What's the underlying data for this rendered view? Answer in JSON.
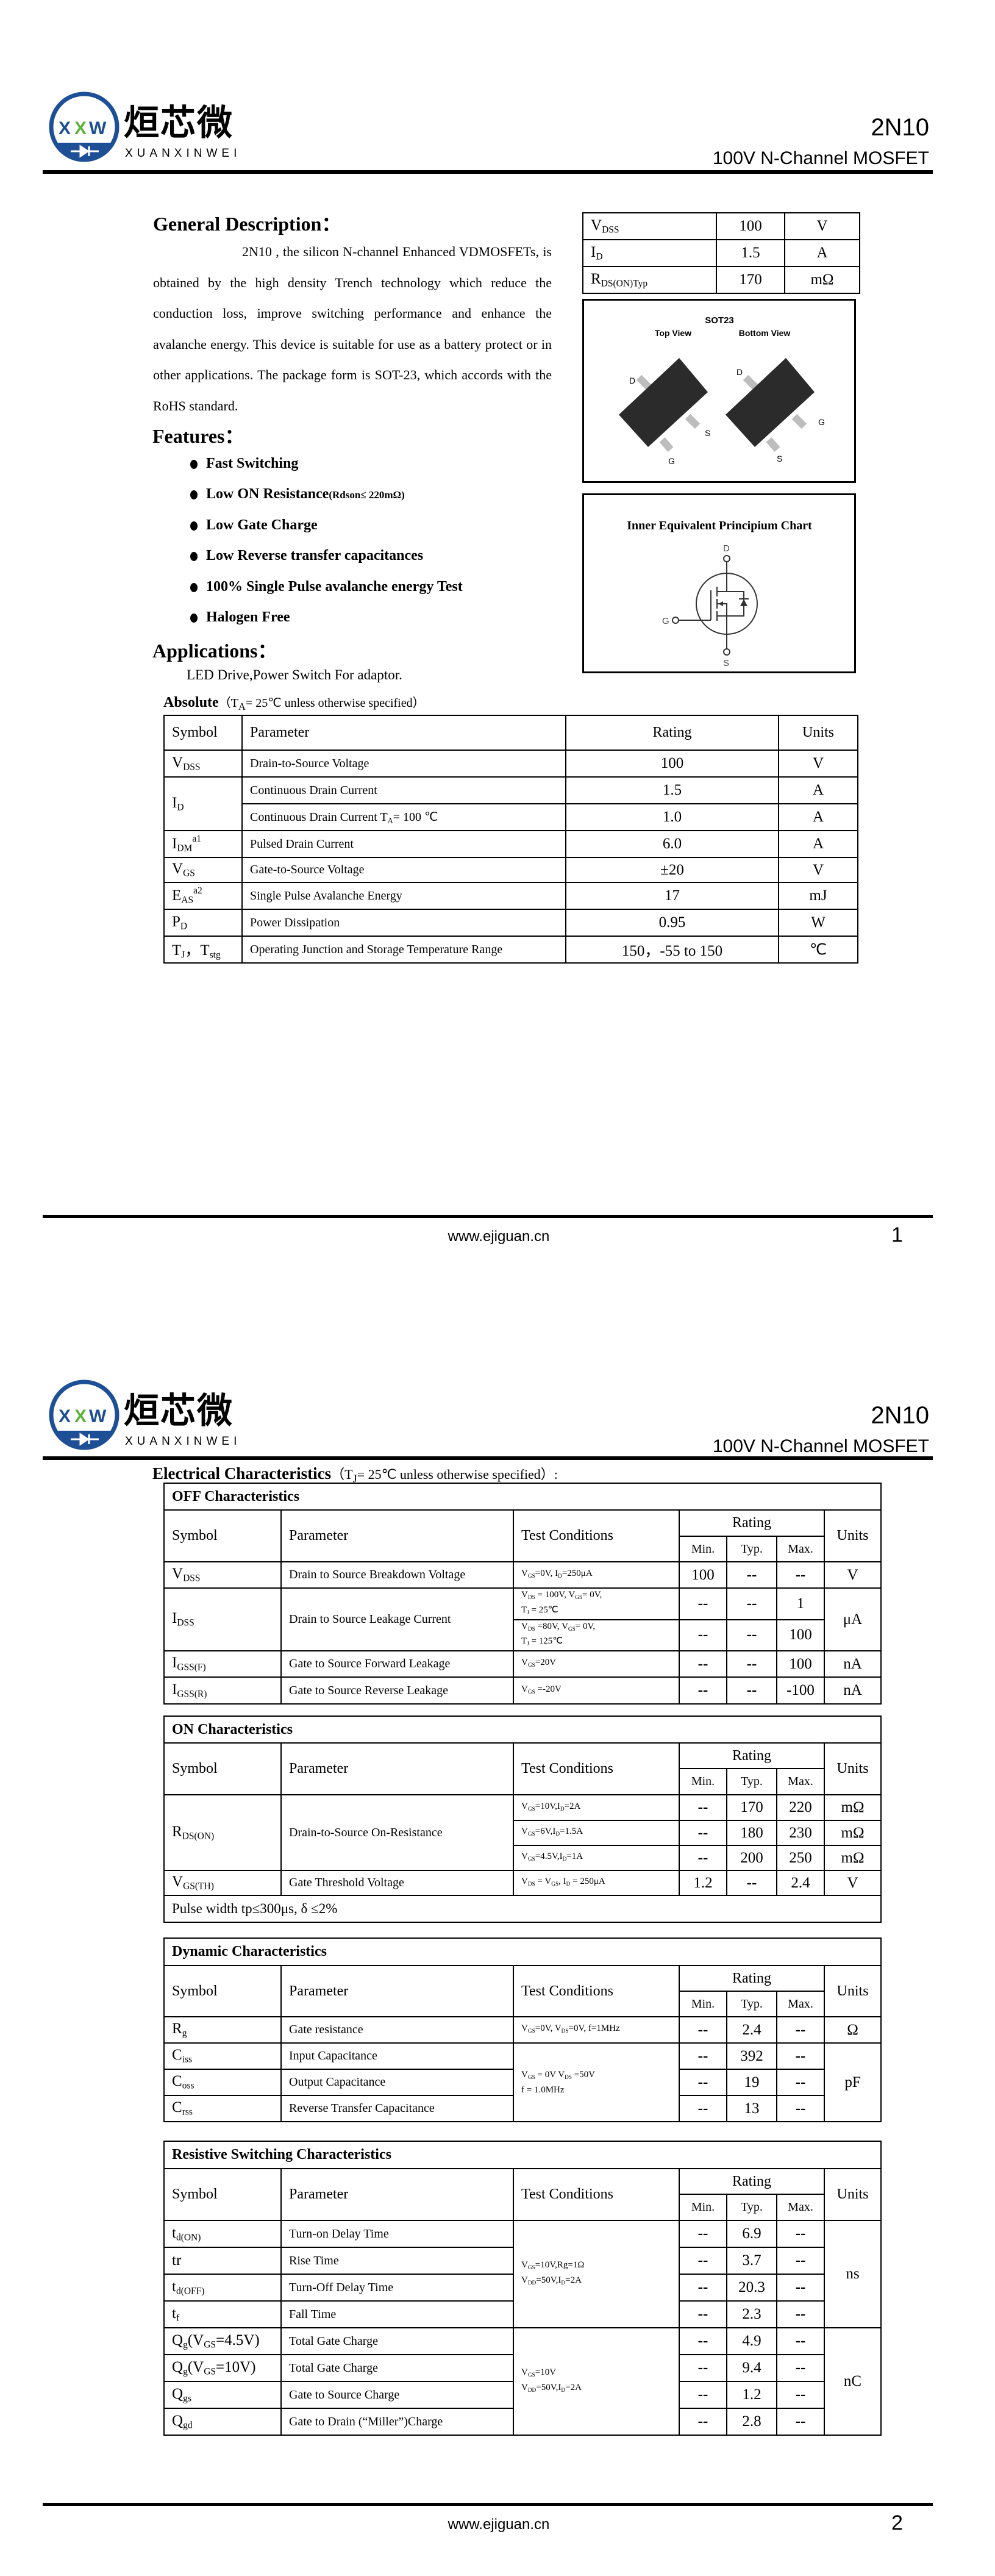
{
  "header": {
    "logo_cn": "烜芯微",
    "logo_en": "XUANXINWEI",
    "logo_mark": [
      "X",
      "X",
      "W"
    ],
    "part": "2N10",
    "subtitle": "100V N-Channel MOSFET"
  },
  "colors": {
    "logo_blue": "#1d4f96",
    "logo_green": "#5fb33a",
    "chip": "#2b2b2b",
    "lead": "#bdbdbd"
  },
  "general": {
    "title": "General Description：",
    "body": "2N10 , the silicon N-channel Enhanced VDMOSFETs, is obtained by the high density Trench technology which reduce the conduction loss, improve switching performance and enhance the avalanche energy. This device is suitable for use as a battery protect or in other applications. The package form is SOT-23, which accords with the RoHS standard."
  },
  "key_specs": [
    [
      "V_{DSS}",
      "100",
      "V"
    ],
    [
      "I_{D}",
      "1.5",
      "A"
    ],
    [
      "R_{DS(ON)Typ}",
      "170",
      "mΩ"
    ]
  ],
  "package": {
    "title": "SOT23",
    "top_view": "Top View",
    "bottom_view": "Bottom View",
    "pin_d": "D",
    "pin_s": "S",
    "pin_g": "G"
  },
  "schematic": {
    "title": "Inner Equivalent Principium Chart",
    "d": "D",
    "g": "G",
    "s": "S"
  },
  "features": {
    "title": "Features：",
    "items": [
      {
        "label": "Fast Switching"
      },
      {
        "label": "Low ON Resistance",
        "note": "(Rdson≤ 220mΩ)"
      },
      {
        "label": "Low Gate Charge"
      },
      {
        "label": "Low Reverse transfer capacitances"
      },
      {
        "label": "100% Single Pulse avalanche energy Test"
      },
      {
        "label": "Halogen Free"
      }
    ]
  },
  "applications": {
    "title": "Applications：",
    "text": "LED Drive,Power Switch For adaptor."
  },
  "absolute": {
    "title": "Absolute",
    "cond": "（T_{A}= 25℃  unless otherwise specified）",
    "headers": [
      "Symbol",
      "Parameter",
      "Rating",
      "Units"
    ],
    "rows": [
      [
        "V_{DSS}",
        "Drain-to-Source Voltage",
        "100",
        "V"
      ],
      [
        {
          "v": "I_{D}",
          "rs": 2
        },
        "Continuous Drain Current",
        "1.5",
        "A"
      ],
      [
        null,
        "Continuous Drain Current T_{A}= 100 ℃",
        "1.0",
        "A"
      ],
      [
        "I_{DM}^{a1}",
        "Pulsed Drain Current",
        "6.0",
        "A"
      ],
      [
        "V_{GS}",
        "Gate-to-Source Voltage",
        "±20",
        "V"
      ],
      [
        "E_{AS}^{a2}",
        "Single Pulse Avalanche Energy",
        "17",
        "mJ"
      ],
      [
        "P_{D}",
        "Power Dissipation",
        "0.95",
        "W"
      ],
      [
        "T_{J}，T_{stg}",
        "Operating Junction and Storage Temperature Range",
        "150，-55 to 150",
        "℃"
      ]
    ]
  },
  "electrical": {
    "title": "Electrical Characteristics",
    "cond": "（T_{J}= 25℃  unless otherwise specified）:",
    "headers": {
      "symbol": "Symbol",
      "parameter": "Parameter",
      "conditions": "Test Conditions",
      "rating": "Rating",
      "min": "Min.",
      "typ": "Typ.",
      "max": "Max.",
      "units": "Units"
    },
    "off": {
      "title": "OFF Characteristics",
      "rows": [
        [
          "V_{DSS}",
          "Drain to Source Breakdown Voltage",
          "V_{GS}=0V, I_{D}=250μA",
          "100",
          "--",
          "--",
          "V"
        ],
        [
          {
            "v": "I_{DSS}",
            "rs": 2
          },
          {
            "v": "Drain to Source Leakage Current",
            "rs": 2
          },
          "V_{DS} = 100V, V_{GS}= 0V,\nT_{J} = 25℃",
          "--",
          "--",
          "1",
          {
            "v": "μA",
            "rs": 2
          }
        ],
        [
          null,
          null,
          "V_{DS} =80V, V_{GS}= 0V,\nT_{J} = 125℃",
          "--",
          "--",
          "100",
          null
        ],
        [
          "I_{GSS(F)}",
          "Gate to Source Forward Leakage",
          "V_{GS}=20V",
          "--",
          "--",
          "100",
          "nA"
        ],
        [
          "I_{GSS(R)}",
          "Gate to Source Reverse Leakage",
          "V_{GS} =-20V",
          "--",
          "--",
          "-100",
          "nA"
        ]
      ]
    },
    "on": {
      "title": "ON Characteristics",
      "rows": [
        [
          {
            "v": "R_{DS(ON)}",
            "rs": 3
          },
          {
            "v": "Drain-to-Source On-Resistance",
            "rs": 3
          },
          "V_{GS}=10V,I_{D}=2A",
          "--",
          "170",
          "220",
          "mΩ"
        ],
        [
          null,
          null,
          "V_{GS}=6V,I_{D}=1.5A",
          "--",
          "180",
          "230",
          "mΩ"
        ],
        [
          null,
          null,
          "V_{GS}=4.5V,I_{D}=1A",
          "--",
          "200",
          "250",
          "mΩ"
        ],
        [
          "V_{GS(TH)}",
          "Gate Threshold Voltage",
          "V_{DS} = V_{GS}, I_{D} = 250μA",
          "1.2",
          "--",
          "2.4",
          "V"
        ]
      ],
      "note": "Pulse width tp≤300μs, δ ≤2%"
    },
    "dynamic": {
      "title": "Dynamic Characteristics",
      "rows": [
        [
          "R_{g}",
          "Gate resistance",
          "V_{GS}=0V, V_{DS}=0V, f=1MHz",
          "--",
          "2.4",
          "--",
          "Ω"
        ],
        [
          "C_{iss}",
          "Input Capacitance",
          {
            "v": "V_{GS} = 0V V_{DS} =50V\nf = 1.0MHz",
            "rs": 3
          },
          "--",
          "392",
          "--",
          {
            "v": "pF",
            "rs": 3
          }
        ],
        [
          "C_{oss}",
          "Output Capacitance",
          null,
          "--",
          "19",
          "--",
          null
        ],
        [
          "C_{rss}",
          "Reverse Transfer Capacitance",
          null,
          "--",
          "13",
          "--",
          null
        ]
      ]
    },
    "switching": {
      "title": "Resistive Switching Characteristics",
      "rows": [
        [
          "t_{d(ON)}",
          "Turn-on Delay Time",
          {
            "v": "V_{GS}=10V,Rg=1Ω\nV_{DD}=50V,I_{D}=2A",
            "rs": 4
          },
          "--",
          "6.9",
          "--",
          {
            "v": "ns",
            "rs": 4
          }
        ],
        [
          "tr",
          "Rise Time",
          null,
          "--",
          "3.7",
          "--",
          null
        ],
        [
          "t_{d(OFF)}",
          "Turn-Off Delay Time",
          null,
          "--",
          "20.3",
          "--",
          null
        ],
        [
          "t_{f}",
          "Fall Time",
          null,
          "--",
          "2.3",
          "--",
          null
        ],
        [
          "Q_{g}(V_{GS}=4.5V)",
          "Total Gate Charge",
          {
            "v": "V_{GS}=10V\nV_{DD}=50V,I_{D}=2A",
            "rs": 4
          },
          "--",
          "4.9",
          "--",
          {
            "v": "nC",
            "rs": 4
          }
        ],
        [
          "Q_{g}(V_{GS}=10V)",
          "Total Gate Charge",
          null,
          "--",
          "9.4",
          "--",
          null
        ],
        [
          "Q_{gs}",
          "Gate to Source Charge",
          null,
          "--",
          "1.2",
          "--",
          null
        ],
        [
          "Q_{gd}",
          "Gate to Drain (“Miller”)Charge",
          null,
          "--",
          "2.8",
          "--",
          null
        ]
      ]
    }
  },
  "footer": {
    "website": "www.ejiguan.cn",
    "page1": "1",
    "page2": "2"
  }
}
